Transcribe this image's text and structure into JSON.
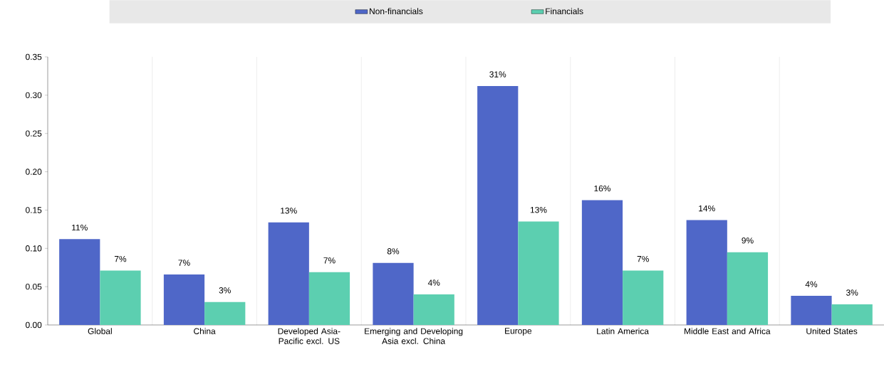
{
  "chart_data": {
    "type": "bar",
    "categories": [
      "Global",
      "China",
      "Developed Asia-Pacific excl. US",
      "Emerging and Developing Asia excl. China",
      "Europe",
      "Latin America",
      "Middle East and Africa",
      "United States"
    ],
    "series": [
      {
        "name": "Non-financials",
        "color": "#4f67c8",
        "values": [
          0.112,
          0.066,
          0.134,
          0.081,
          0.312,
          0.163,
          0.137,
          0.038
        ],
        "value_labels": [
          "11%",
          "7%",
          "13%",
          "8%",
          "31%",
          "16%",
          "14%",
          "4%"
        ]
      },
      {
        "name": "Financials",
        "color": "#5ccfb0",
        "values": [
          0.071,
          0.03,
          0.069,
          0.04,
          0.135,
          0.071,
          0.095,
          0.027
        ],
        "value_labels": [
          "7%",
          "3%",
          "7%",
          "4%",
          "13%",
          "7%",
          "9%",
          "3%"
        ]
      }
    ],
    "ylim": [
      0,
      0.35
    ],
    "yticks": [
      {
        "value": 0,
        "label": "0.00"
      },
      {
        "value": 0.05,
        "label": "0.05"
      },
      {
        "value": 0.1,
        "label": "0.10"
      },
      {
        "value": 0.15,
        "label": "0.15"
      },
      {
        "value": 0.2,
        "label": "0.20"
      },
      {
        "value": 0.25,
        "label": "0.25"
      },
      {
        "value": 0.3,
        "label": "0.30"
      },
      {
        "value": 0.35,
        "label": "0.35"
      }
    ],
    "grid": "x",
    "legend": "top"
  }
}
